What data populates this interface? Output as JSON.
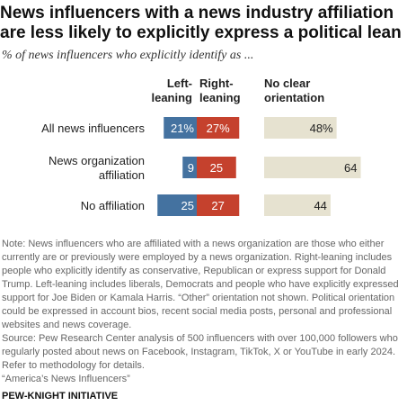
{
  "title": "News influencers with a news industry affiliation are less likely to explicitly express a political lean",
  "subtitle": "% of news influencers who explicitly identify as ...",
  "chart_data": {
    "type": "bar",
    "stacked_left": true,
    "columns": [
      {
        "key": "left",
        "label_lines": [
          "Left-",
          "leaning"
        ]
      },
      {
        "key": "right",
        "label_lines": [
          "Right-",
          "leaning"
        ]
      },
      {
        "key": "none",
        "label_lines": [
          "No clear",
          "orientation"
        ]
      }
    ],
    "categories": [
      {
        "label_lines": [
          "All news influencers"
        ],
        "left": "21%",
        "right": "27%",
        "none": "48%"
      },
      {
        "label_lines": [
          "News organization",
          "affiliation"
        ],
        "left": "9",
        "right": "25",
        "none": "64"
      },
      {
        "label_lines": [
          "No affiliation"
        ],
        "left": "25",
        "right": "27",
        "none": "44"
      }
    ],
    "series": [
      {
        "key": "left",
        "values": [
          21,
          9,
          25
        ],
        "color": "#4472a0"
      },
      {
        "key": "right",
        "values": [
          27,
          25,
          27
        ],
        "color": "#c5412d"
      },
      {
        "key": "none",
        "values": [
          48,
          64,
          44
        ],
        "color": "#e6e2d0"
      }
    ]
  },
  "note_lines": [
    "Note: News influencers who are affiliated with a news organization are those who either",
    "currently are or previously were employed by a news organization. Right-leaning includes",
    "people who explicitly identify as conservative, Republican or express support for Donald",
    "Trump. Left-leaning includes liberals, Democrats and people who have explicitly expressed",
    "support for Joe Biden or Kamala Harris. “Other” orientation not shown. Political orientation",
    "could be expressed in account bios, recent social media posts, personal and professional",
    "websites and news coverage.",
    "Source: Pew Research Center analysis of 500 influencers with over 100,000 followers who",
    "regularly posted about news on Facebook, Instagram, TikTok, X or YouTube in early 2024.",
    "Refer to methodology for details.",
    "“America’s News Influencers”"
  ],
  "footer": "PEW-KNIGHT INITIATIVE"
}
